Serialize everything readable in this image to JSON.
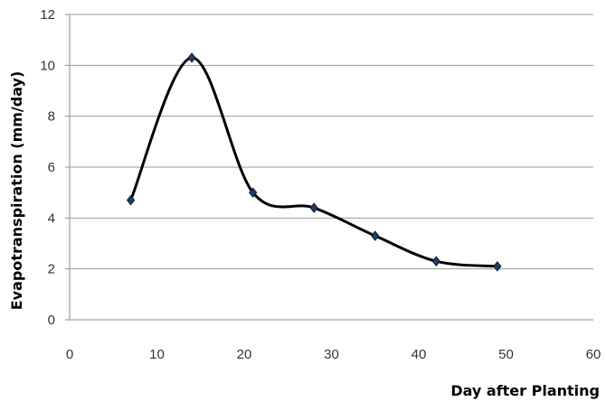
{
  "chart_data": {
    "type": "line",
    "title": "",
    "xlabel": "Day after Planting",
    "ylabel": "Evapotranspiration  (mm/day)",
    "xlim": [
      0,
      60
    ],
    "ylim": [
      0,
      12
    ],
    "xticks": [
      0,
      10,
      20,
      30,
      40,
      50,
      60
    ],
    "yticks": [
      0,
      2,
      4,
      6,
      8,
      10,
      12
    ],
    "grid": "horizontal",
    "legend": "none",
    "smooth": true,
    "series": [
      {
        "x": [
          7,
          14,
          21,
          28,
          35,
          42,
          49
        ],
        "y": [
          4.7,
          10.3,
          5.0,
          4.4,
          3.3,
          2.3,
          2.1
        ],
        "color": "#000000",
        "marker": "diamond",
        "marker_color": "#1f3b66"
      }
    ]
  }
}
